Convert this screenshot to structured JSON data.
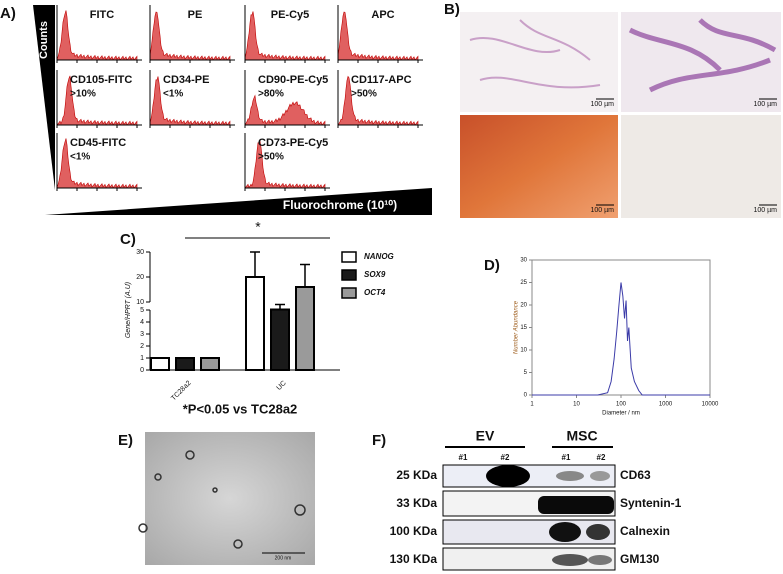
{
  "panel_a": {
    "label": "A)",
    "y_axis": "Counts",
    "x_axis": "Fluorochrome (10¹⁰)",
    "histograms": [
      {
        "title": "FITC"
      },
      {
        "title": "PE"
      },
      {
        "title": "PE-Cy5"
      },
      {
        "title": "APC"
      },
      {
        "title": "CD105-FITC",
        "note": ">10%"
      },
      {
        "title": "CD34-PE",
        "note": "<1%"
      },
      {
        "title": "CD90-PE-Cy5",
        "note": ">80%"
      },
      {
        "title": "CD117-APC",
        "note": ">50%"
      },
      {
        "title": "CD45-FITC",
        "note": "<1%"
      },
      {
        "title": "CD73-PE-Cy5",
        "note": ">50%"
      }
    ]
  },
  "panel_b": {
    "label": "B)",
    "scale_bars": [
      "100 µm",
      "100 µm",
      "100 µm",
      "100 µm"
    ]
  },
  "chart_data": [
    {
      "type": "bar",
      "label": "C)",
      "y_label": "Gene/HPRT (A.U)",
      "categories": [
        "TC28a2",
        "UC"
      ],
      "series": [
        {
          "name": "NANOG",
          "color": "#ffffff",
          "values": [
            1,
            20
          ],
          "errors": [
            0,
            10
          ]
        },
        {
          "name": "SOX9",
          "color": "#1a1a1a",
          "values": [
            1,
            7
          ],
          "errors": [
            0,
            2
          ]
        },
        {
          "name": "OCT4",
          "color": "#9a9a9a",
          "values": [
            1,
            16
          ],
          "errors": [
            0,
            9
          ]
        }
      ],
      "ylim": [
        0,
        30
      ],
      "axis_break": [
        5,
        10
      ],
      "yticks": [
        0,
        1,
        2,
        3,
        4,
        5,
        10,
        20,
        30
      ],
      "significance": "*",
      "footnote": "*P<0.05 vs TC28a2"
    },
    {
      "type": "line",
      "label": "D)",
      "x_label": "Diameter / nm",
      "y_label": "Number Abundance",
      "x": [
        1,
        3,
        10,
        30,
        50,
        60,
        70,
        80,
        90,
        100,
        110,
        120,
        130,
        140,
        150,
        170,
        200,
        250,
        300,
        1000,
        10000
      ],
      "values": [
        0,
        0,
        0,
        0,
        0.5,
        3,
        8,
        14,
        20,
        25,
        22,
        17,
        21,
        12,
        15,
        6,
        3,
        1,
        0,
        0,
        0
      ],
      "xlim": [
        1,
        10000
      ],
      "ylim": [
        0,
        30
      ],
      "xticks": [
        1,
        10,
        100,
        1000,
        10000
      ],
      "yticks": [
        0,
        5,
        10,
        15,
        20,
        25,
        30
      ],
      "log_x": true,
      "color": "#3b3ba8"
    }
  ],
  "panel_e": {
    "label": "E)",
    "scale_bar": "200 nm"
  },
  "panel_f": {
    "label": "F)",
    "groups": [
      {
        "name": "EV",
        "lanes": [
          "#1",
          "#2"
        ]
      },
      {
        "name": "MSC",
        "lanes": [
          "#1",
          "#2"
        ]
      }
    ],
    "rows": [
      {
        "weight": "25 KDa",
        "protein": "CD63"
      },
      {
        "weight": "33 KDa",
        "protein": "Syntenin-1"
      },
      {
        "weight": "100 KDa",
        "protein": "Calnexin"
      },
      {
        "weight": "130 KDa",
        "protein": "GM130"
      }
    ]
  }
}
